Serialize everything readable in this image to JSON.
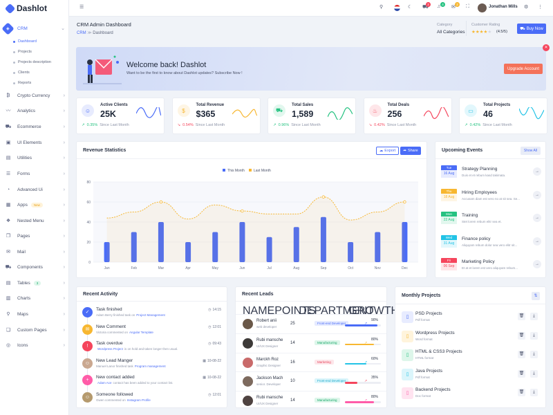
{
  "app": {
    "name": "Dashlot"
  },
  "header": {
    "user": "Jonathan Mills",
    "badges": [
      "2",
      "4",
      "2"
    ]
  },
  "sidebar": {
    "items": [
      {
        "label": "CRM",
        "icon": "crm-icon",
        "glyph": "◈",
        "active": true
      },
      {
        "label": "Crypto Currency",
        "icon": "bitcoin-icon",
        "glyph": "₿"
      },
      {
        "label": "Analytics",
        "icon": "analytics-icon",
        "glyph": "〰"
      },
      {
        "label": "Ecommerce",
        "icon": "cart-icon",
        "glyph": "⛟"
      },
      {
        "label": "UI Elements",
        "icon": "ui-icon",
        "glyph": "▣"
      },
      {
        "label": "Utilities",
        "icon": "utilities-icon",
        "glyph": "▤"
      },
      {
        "label": "Forms",
        "icon": "forms-icon",
        "glyph": "☰"
      },
      {
        "label": "Advanced Ui",
        "icon": "advanced-icon",
        "glyph": "◔"
      },
      {
        "label": "Apps",
        "icon": "apps-icon",
        "glyph": "▦",
        "badge": "New"
      },
      {
        "label": "Nested Menu",
        "icon": "layers-icon",
        "glyph": "❖"
      },
      {
        "label": "Pages",
        "icon": "pages-icon",
        "glyph": "❐"
      },
      {
        "label": "Mail",
        "icon": "mail-icon",
        "glyph": "✉"
      },
      {
        "label": "Components",
        "icon": "components-icon",
        "glyph": "⛟"
      },
      {
        "label": "Tables",
        "icon": "tables-icon",
        "glyph": "▤",
        "badge": "3"
      },
      {
        "label": "Charts",
        "icon": "charts-icon",
        "glyph": "▥"
      },
      {
        "label": "Maps",
        "icon": "maps-icon",
        "glyph": "⚲"
      },
      {
        "label": "Custom Pages",
        "icon": "custom-pages-icon",
        "glyph": "❏"
      },
      {
        "label": "Icons",
        "icon": "icons-icon",
        "glyph": "◎"
      }
    ],
    "crm_sub": [
      "Dashboard",
      "Projects",
      "Projects description",
      "Clients",
      "Reports"
    ]
  },
  "page": {
    "title": "CRM Admin Dashboard",
    "breadcrumb": [
      "CRM",
      "Dashboard"
    ],
    "category_label": "Category",
    "category_value": "All Categories",
    "rating_label": "Customer Rating",
    "rating_value": "(4.5/5)",
    "rating": 4.5,
    "buy": "Buy Now"
  },
  "welcome": {
    "title": "Welcome back! Dashlot",
    "text": "Want to be the first to know about Dashlot updates? Subscribe Now !",
    "button": "Upgrade Account"
  },
  "stats": [
    {
      "title": "Active Clients",
      "value": "25K",
      "change": "0.35%",
      "since": "Since Last Month",
      "up": true,
      "color": "#4a6cf7"
    },
    {
      "title": "Total Revenue",
      "value": "$365",
      "change": "0.54%",
      "since": "Since Last Month",
      "up": false,
      "color": "#f7b731"
    },
    {
      "title": "Total Sales",
      "value": "1,589",
      "change": "0.96%",
      "since": "Since Last Month",
      "up": true,
      "color": "#26c281"
    },
    {
      "title": "Total Deals",
      "value": "256",
      "change": "0.42%",
      "since": "Since Last Month",
      "up": false,
      "color": "#f5455c"
    },
    {
      "title": "Total Projects",
      "value": "46",
      "change": "0.42%",
      "since": "Since Last Month",
      "up": true,
      "color": "#22c3e6"
    }
  ],
  "revenue": {
    "title": "Revenue Statistics",
    "export": "Export",
    "share": "Share"
  },
  "chart_data": {
    "type": "bar",
    "categories": [
      "Jan",
      "Feb",
      "Mar",
      "Apr",
      "May",
      "Jun",
      "Jul",
      "Aug",
      "Sep",
      "Oct",
      "Nov",
      "Dec"
    ],
    "series": [
      {
        "name": "This Month",
        "type": "bar",
        "values": [
          20,
          30,
          40,
          20,
          30,
          40,
          25,
          35,
          45,
          20,
          30,
          40
        ]
      },
      {
        "name": "Last Month",
        "type": "line",
        "values": [
          44,
          50,
          60,
          43,
          57,
          51,
          48,
          48,
          65,
          42,
          50,
          60
        ]
      }
    ],
    "ylim": [
      0,
      80
    ],
    "yticks": [
      0,
      20,
      40,
      60,
      80
    ],
    "legend": "top-center"
  },
  "events": {
    "title": "Upcoming Events",
    "show_all": "Show All",
    "items": [
      {
        "day": "Tue",
        "date": "16 Aug",
        "title": "Strategy Planning",
        "text": "Duis et et rebum kasd takimata.",
        "color": "#4a6cf7"
      },
      {
        "day": "Thu",
        "date": "18 Aug",
        "title": "Hiring Employees",
        "text": "Accusam diam est vero no at sit sea. Se...",
        "color": "#f7b731"
      },
      {
        "day": "Mon",
        "date": "22 Aug",
        "title": "Training",
        "text": "Stet lorem rebum elitr sea et.",
        "color": "#26c281"
      },
      {
        "day": "Wed",
        "date": "31 Aug",
        "title": "Finance policy",
        "text": "Aliquyam rebum dolor sea vero elitr sit...",
        "color": "#22c3e6"
      },
      {
        "day": "Fri",
        "date": "06 Sep",
        "title": "Marketing Policy",
        "text": "Et at et lorem est vero aliquyam rebum...",
        "color": "#f5455c"
      }
    ]
  },
  "activity": {
    "title": "Recent Activity",
    "items": [
      {
        "title": "Task finished",
        "pre": "Adam Berry finished task on",
        "link": "Project Management",
        "time": "14:15",
        "color": "#4a6cf7",
        "glyph": "✓"
      },
      {
        "title": "New Comment",
        "pre": "Victoria commented on",
        "link": "Angular Template",
        "time": "12:01",
        "color": "#f7b731",
        "glyph": "✉"
      },
      {
        "title": "Task overdue",
        "pre": "",
        "link": "Wordpress Project",
        "post": "is on hold and taken longer then usual.",
        "time": "09:43",
        "color": "#f5455c",
        "glyph": "!"
      },
      {
        "title": "New Lead Manger",
        "pre": "Manuel Lanor finished task",
        "link": "Program management",
        "time": "10-08-22",
        "color": "#caa890",
        "glyph": "☺"
      },
      {
        "title": "New contact added",
        "pre": "",
        "link": "Adam Ace",
        "post": "contact has been added to your contact list.",
        "time": "10-08-22",
        "color": "#ff5ca8",
        "glyph": "+"
      },
      {
        "title": "Someone followed",
        "pre": "Gwen commented on",
        "link": "Instagram Profile",
        "time": "12:01",
        "color": "#b59a6e",
        "glyph": "☺"
      }
    ]
  },
  "leads": {
    "title": "Recent Leads",
    "cols": [
      "NAME",
      "POINTS",
      "DEPARTMENT",
      "GROWTH"
    ],
    "rows": [
      {
        "name": "Robert anii",
        "role": "web developer",
        "points": "25",
        "dept": "Front-end Developer",
        "growth": "90%",
        "pct": 90,
        "bar": "#4a6cf7",
        "dcolor": "#4a6cf7",
        "dbg": "#e6ebff"
      },
      {
        "name": "Rubi mansche",
        "role": "UI/UX Designer",
        "points": "14",
        "dept": "Manufacturing",
        "growth": "80%",
        "pct": 80,
        "bar": "#f7b731",
        "dcolor": "#1aa86a",
        "dbg": "#ddf6ea"
      },
      {
        "name": "Marckh Roz",
        "role": "Graphic Designer",
        "points": "16",
        "dept": "Marketing",
        "growth": "60%",
        "pct": 60,
        "bar": "#22c3e6",
        "dcolor": "#e8495f",
        "dbg": "#fde6ea"
      },
      {
        "name": "Jackson Mach",
        "role": "senior. Developer",
        "points": "10",
        "dept": "Front-end Developer",
        "growth": "35%",
        "pct": 35,
        "bar": "#f5455c",
        "dcolor": "#18a9c9",
        "dbg": "#dbf5fb"
      },
      {
        "name": "Rubi mansche",
        "role": "UI/UX Designer",
        "points": "14",
        "dept": "Manufacturing",
        "growth": "80%",
        "pct": 80,
        "bar": "#ff5ca8",
        "dcolor": "#1aa86a",
        "dbg": "#ddf6ea"
      }
    ]
  },
  "projects": {
    "title": "Monthly Projects",
    "items": [
      {
        "name": "PSD Projects",
        "fmt": "Pdf format",
        "color": "#4a6cf7",
        "bg": "#e8ecff"
      },
      {
        "name": "Wordpress Projects",
        "fmt": "Word format",
        "color": "#f7b731",
        "bg": "#fff4dc"
      },
      {
        "name": "HTML & CSS3 Projects",
        "fmt": "HTML format",
        "color": "#26c281",
        "bg": "#ddf6ea"
      },
      {
        "name": "Java Projects",
        "fmt": "Pdf format",
        "color": "#22c3e6",
        "bg": "#dbf5fb"
      },
      {
        "name": "Backend Projects",
        "fmt": "Doc format",
        "color": "#ff5ca8",
        "bg": "#ffe3f0"
      }
    ]
  }
}
